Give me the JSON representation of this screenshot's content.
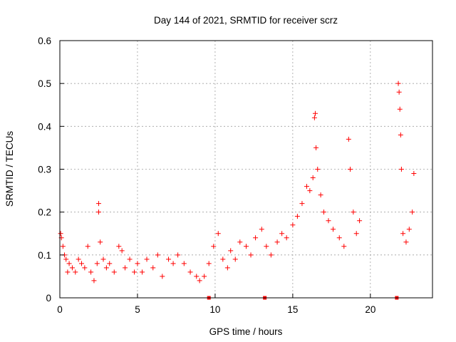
{
  "chart_data": {
    "type": "scatter",
    "title": "Day 144 of 2021, SRMTID for receiver scrz",
    "xlabel": "GPS time / hours",
    "ylabel": "SRMTID / TECUs",
    "xlim": [
      0,
      24
    ],
    "ylim": [
      0,
      0.6
    ],
    "x_ticks": [
      0,
      5,
      10,
      15,
      20
    ],
    "y_ticks": [
      0,
      0.1,
      0.2,
      0.3,
      0.4,
      0.5,
      0.6
    ],
    "x_tick_labels": [
      "0",
      "5",
      "10",
      "15",
      "20"
    ],
    "y_tick_labels": [
      "0",
      "0.1",
      "0.2",
      "0.3",
      "0.4",
      "0.5",
      "0.6"
    ],
    "grid": true,
    "marker": "plus",
    "color": "#ff0000",
    "series": [
      {
        "name": "SRMTID",
        "points": [
          [
            0.05,
            0.15
          ],
          [
            0.1,
            0.14
          ],
          [
            0.2,
            0.12
          ],
          [
            0.3,
            0.1
          ],
          [
            0.4,
            0.09
          ],
          [
            0.5,
            0.06
          ],
          [
            0.6,
            0.08
          ],
          [
            0.8,
            0.07
          ],
          [
            1.0,
            0.06
          ],
          [
            1.2,
            0.09
          ],
          [
            1.4,
            0.08
          ],
          [
            1.6,
            0.07
          ],
          [
            1.8,
            0.12
          ],
          [
            2.0,
            0.06
          ],
          [
            2.2,
            0.04
          ],
          [
            2.4,
            0.08
          ],
          [
            2.5,
            0.22
          ],
          [
            2.5,
            0.2
          ],
          [
            2.6,
            0.13
          ],
          [
            2.8,
            0.09
          ],
          [
            3.0,
            0.07
          ],
          [
            3.2,
            0.08
          ],
          [
            3.5,
            0.06
          ],
          [
            3.8,
            0.12
          ],
          [
            4.0,
            0.11
          ],
          [
            4.2,
            0.07
          ],
          [
            4.5,
            0.09
          ],
          [
            4.8,
            0.06
          ],
          [
            5.0,
            0.08
          ],
          [
            5.3,
            0.06
          ],
          [
            5.6,
            0.09
          ],
          [
            6.0,
            0.07
          ],
          [
            6.3,
            0.1
          ],
          [
            6.6,
            0.05
          ],
          [
            7.0,
            0.09
          ],
          [
            7.3,
            0.08
          ],
          [
            7.6,
            0.1
          ],
          [
            8.0,
            0.08
          ],
          [
            8.4,
            0.06
          ],
          [
            8.8,
            0.05
          ],
          [
            9.0,
            0.04
          ],
          [
            9.3,
            0.05
          ],
          [
            9.6,
            0.08
          ],
          [
            9.9,
            0.12
          ],
          [
            10.2,
            0.15
          ],
          [
            10.5,
            0.09
          ],
          [
            10.8,
            0.07
          ],
          [
            11.0,
            0.11
          ],
          [
            11.3,
            0.09
          ],
          [
            11.6,
            0.13
          ],
          [
            12.0,
            0.12
          ],
          [
            12.3,
            0.1
          ],
          [
            12.6,
            0.14
          ],
          [
            13.0,
            0.16
          ],
          [
            13.3,
            0.12
          ],
          [
            13.6,
            0.1
          ],
          [
            14.0,
            0.13
          ],
          [
            14.3,
            0.15
          ],
          [
            14.6,
            0.14
          ],
          [
            15.0,
            0.17
          ],
          [
            15.3,
            0.19
          ],
          [
            15.6,
            0.22
          ],
          [
            15.9,
            0.26
          ],
          [
            16.1,
            0.25
          ],
          [
            16.3,
            0.28
          ],
          [
            16.4,
            0.42
          ],
          [
            16.45,
            0.43
          ],
          [
            16.5,
            0.35
          ],
          [
            16.6,
            0.3
          ],
          [
            16.8,
            0.24
          ],
          [
            17.0,
            0.2
          ],
          [
            17.3,
            0.18
          ],
          [
            17.6,
            0.16
          ],
          [
            18.0,
            0.14
          ],
          [
            18.3,
            0.12
          ],
          [
            18.6,
            0.37
          ],
          [
            18.7,
            0.3
          ],
          [
            18.9,
            0.2
          ],
          [
            19.1,
            0.15
          ],
          [
            19.3,
            0.18
          ],
          [
            21.8,
            0.5
          ],
          [
            21.85,
            0.48
          ],
          [
            21.9,
            0.44
          ],
          [
            21.95,
            0.38
          ],
          [
            22.0,
            0.3
          ],
          [
            22.1,
            0.15
          ],
          [
            22.3,
            0.13
          ],
          [
            22.5,
            0.16
          ],
          [
            22.7,
            0.2
          ],
          [
            22.8,
            0.29
          ]
        ]
      }
    ],
    "gap_markers_x": [
      9.6,
      13.2,
      21.7
    ]
  }
}
